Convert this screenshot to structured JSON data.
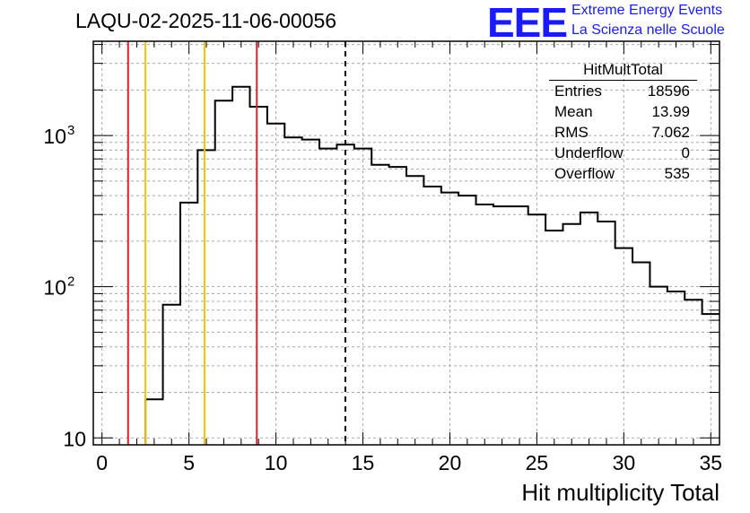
{
  "title": "LAQU-02-2025-11-06-00056",
  "logo": {
    "text": "EEE",
    "line1": "Extreme Energy Events",
    "line2": "La Scienza nelle Scuole"
  },
  "stats_box": {
    "title": "HitMultTotal",
    "rows": [
      {
        "label": "Entries",
        "value": "18596"
      },
      {
        "label": "Mean",
        "value": "13.99"
      },
      {
        "label": "RMS",
        "value": "7.062"
      },
      {
        "label": "Underflow",
        "value": "0"
      },
      {
        "label": "Overflow",
        "value": "535"
      }
    ]
  },
  "chart_data": {
    "type": "histogram",
    "xlabel": "Hit multiplicity Total",
    "ylabel": "",
    "xlim": [
      -0.5,
      35.5
    ],
    "ylim": [
      9,
      4200
    ],
    "yscale": "log",
    "grid": true,
    "x_ticks": [
      "0",
      "5",
      "10",
      "15",
      "20",
      "25",
      "30",
      "35"
    ],
    "y_ticks": [
      {
        "base": "10",
        "exp": ""
      },
      {
        "base": "10",
        "exp": "2"
      },
      {
        "base": "10",
        "exp": "3"
      }
    ],
    "bins": [
      {
        "x": 3,
        "value": 18
      },
      {
        "x": 4,
        "value": 76
      },
      {
        "x": 5,
        "value": 360
      },
      {
        "x": 6,
        "value": 800
      },
      {
        "x": 7,
        "value": 1700
      },
      {
        "x": 8,
        "value": 2100
      },
      {
        "x": 9,
        "value": 1550
      },
      {
        "x": 10,
        "value": 1200
      },
      {
        "x": 11,
        "value": 970
      },
      {
        "x": 12,
        "value": 940
      },
      {
        "x": 13,
        "value": 820
      },
      {
        "x": 14,
        "value": 870
      },
      {
        "x": 15,
        "value": 820
      },
      {
        "x": 16,
        "value": 640
      },
      {
        "x": 17,
        "value": 620
      },
      {
        "x": 18,
        "value": 540
      },
      {
        "x": 19,
        "value": 460
      },
      {
        "x": 20,
        "value": 420
      },
      {
        "x": 21,
        "value": 400
      },
      {
        "x": 22,
        "value": 350
      },
      {
        "x": 23,
        "value": 340
      },
      {
        "x": 24,
        "value": 340
      },
      {
        "x": 25,
        "value": 300
      },
      {
        "x": 26,
        "value": 235
      },
      {
        "x": 27,
        "value": 260
      },
      {
        "x": 28,
        "value": 310
      },
      {
        "x": 29,
        "value": 270
      },
      {
        "x": 30,
        "value": 180
      },
      {
        "x": 31,
        "value": 145
      },
      {
        "x": 32,
        "value": 100
      },
      {
        "x": 33,
        "value": 93
      },
      {
        "x": 34,
        "value": 82
      },
      {
        "x": 35,
        "value": 66
      }
    ],
    "markers": [
      {
        "x": 1.5,
        "color": "#e8202a",
        "style": "solid"
      },
      {
        "x": 2.5,
        "color": "#f2c200",
        "style": "solid"
      },
      {
        "x": 5.9,
        "color": "#f2c200",
        "style": "solid"
      },
      {
        "x": 8.9,
        "color": "#e8202a",
        "style": "solid"
      },
      {
        "x": 13.99,
        "color": "#000000",
        "style": "dashed"
      }
    ]
  }
}
